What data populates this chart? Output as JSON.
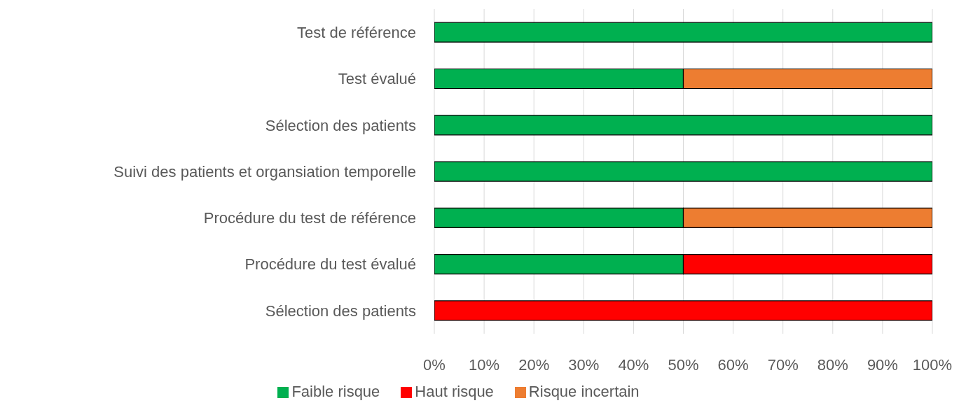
{
  "chart_data": {
    "type": "bar",
    "orientation": "horizontal",
    "stacked": true,
    "categories": [
      "Test de référence",
      "Test évalué",
      "Sélection des patients",
      "Suivi des patients et organsiation temporelle",
      "Procédure du test de référence",
      "Procédure du test évalué",
      "Sélection des patients"
    ],
    "series": [
      {
        "name": "Faible risque",
        "color": "#00b050",
        "values": [
          100,
          50,
          100,
          100,
          50,
          50,
          0
        ]
      },
      {
        "name": "Haut risque",
        "color": "#ff0000",
        "values": [
          0,
          0,
          0,
          0,
          0,
          50,
          100
        ]
      },
      {
        "name": "Risque incertain",
        "color": "#ed7d31",
        "values": [
          0,
          50,
          0,
          0,
          50,
          0,
          0
        ]
      }
    ],
    "xlim": [
      0,
      100
    ],
    "xticks": [
      {
        "value": 0,
        "label": "0%"
      },
      {
        "value": 10,
        "label": "10%"
      },
      {
        "value": 20,
        "label": "20%"
      },
      {
        "value": 30,
        "label": "30%"
      },
      {
        "value": 40,
        "label": "40%"
      },
      {
        "value": 50,
        "label": "50%"
      },
      {
        "value": 60,
        "label": "60%"
      },
      {
        "value": 70,
        "label": "70%"
      },
      {
        "value": 80,
        "label": "80%"
      },
      {
        "value": 90,
        "label": "90%"
      },
      {
        "value": 100,
        "label": "100%"
      }
    ],
    "grid": "x",
    "legend": "bottom"
  }
}
